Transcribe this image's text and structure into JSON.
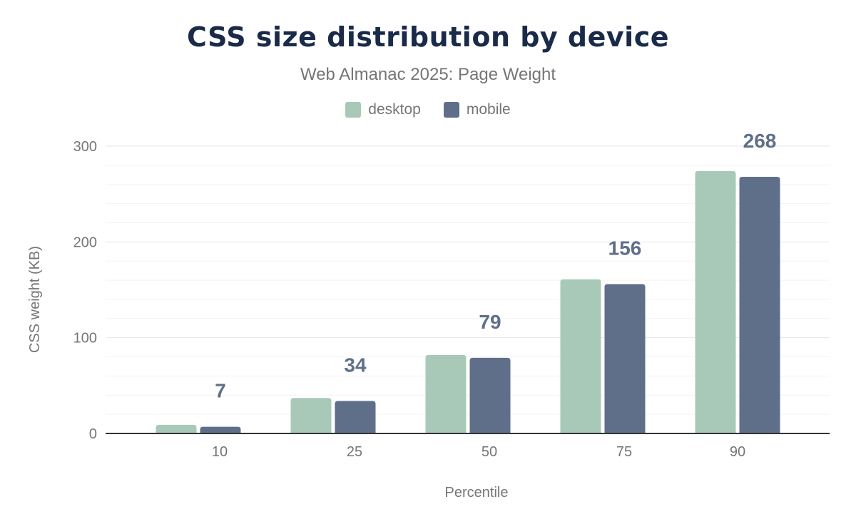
{
  "chart_data": {
    "type": "bar",
    "title": "CSS size distribution by device",
    "subtitle": "Web Almanac 2025: Page Weight",
    "xlabel": "Percentile",
    "ylabel": "CSS weight (KB)",
    "categories": [
      "10",
      "25",
      "50",
      "75",
      "90"
    ],
    "series": [
      {
        "name": "desktop",
        "color": "#a8c9b8",
        "values": [
          9,
          37,
          82,
          161,
          274
        ]
      },
      {
        "name": "mobile",
        "color": "#5f6f8a",
        "values": [
          7,
          34,
          79,
          156,
          268
        ]
      }
    ],
    "data_labels_series": "mobile",
    "ylim": [
      0,
      300
    ],
    "yticks": [
      0,
      100,
      200,
      300
    ],
    "grid": true,
    "legend_position": "top"
  }
}
